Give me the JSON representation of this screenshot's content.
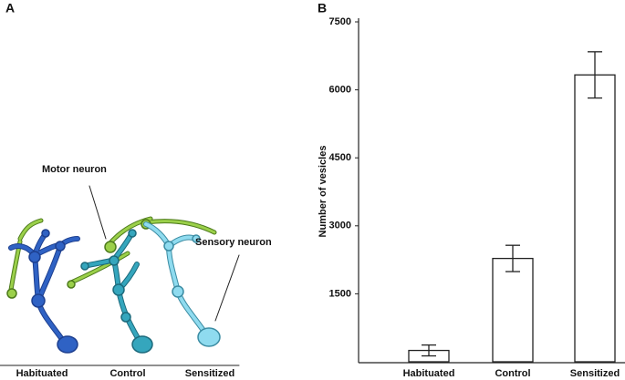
{
  "panel_a": {
    "panel_label": "A",
    "motor_label": "Motor neuron",
    "sensory_label": "Sensory neuron",
    "categories": [
      "Habituated",
      "Control",
      "Sensitized"
    ]
  },
  "chart_data": {
    "type": "bar",
    "panel_label": "B",
    "ylabel": "Number of vesicles",
    "categories": [
      "Habituated",
      "Control",
      "Sensitized"
    ],
    "values": [
      250,
      2280,
      6330
    ],
    "errors": [
      120,
      290,
      510
    ],
    "color": "#ffffff",
    "ylim": [
      0,
      7500
    ],
    "yticks": [
      1500,
      3000,
      4500,
      6000,
      7500
    ]
  }
}
